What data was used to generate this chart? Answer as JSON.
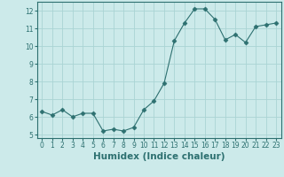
{
  "x": [
    0,
    1,
    2,
    3,
    4,
    5,
    6,
    7,
    8,
    9,
    10,
    11,
    12,
    13,
    14,
    15,
    16,
    17,
    18,
    19,
    20,
    21,
    22,
    23
  ],
  "y": [
    6.3,
    6.1,
    6.4,
    6.0,
    6.2,
    6.2,
    5.2,
    5.3,
    5.2,
    5.4,
    6.4,
    6.9,
    7.9,
    10.3,
    11.3,
    12.1,
    12.1,
    11.5,
    10.35,
    10.65,
    10.2,
    11.1,
    11.2,
    11.3
  ],
  "line_color": "#2d7070",
  "marker": "D",
  "marker_size": 2.5,
  "bg_color": "#cceaea",
  "grid_color": "#aad4d4",
  "xlabel": "Humidex (Indice chaleur)",
  "xlim": [
    -0.5,
    23.5
  ],
  "ylim": [
    4.8,
    12.5
  ],
  "yticks": [
    5,
    6,
    7,
    8,
    9,
    10,
    11,
    12
  ],
  "xticks": [
    0,
    1,
    2,
    3,
    4,
    5,
    6,
    7,
    8,
    9,
    10,
    11,
    12,
    13,
    14,
    15,
    16,
    17,
    18,
    19,
    20,
    21,
    22,
    23
  ],
  "tick_label_fontsize": 5.5,
  "xlabel_fontsize": 7.5
}
